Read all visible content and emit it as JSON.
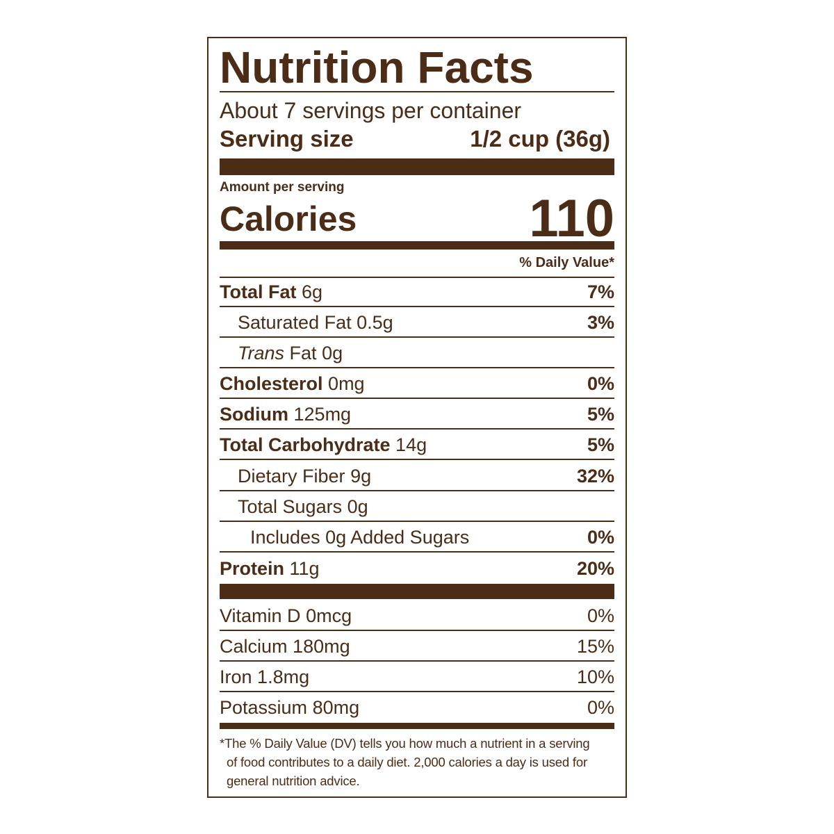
{
  "title": "Nutrition Facts",
  "servings": "About 7 servings per container",
  "serving_size": {
    "label": "Serving size",
    "value": "1/2 cup (36g)"
  },
  "amount_per_serving": "Amount per serving",
  "calories": {
    "label": "Calories",
    "value": "110"
  },
  "daily_value_header": "% Daily Value*",
  "nutrients": [
    {
      "name": "Total Fat",
      "amount": "6g",
      "dv": "7%"
    },
    {
      "name": "Saturated Fat",
      "amount": "0.5g",
      "dv": "3%"
    },
    {
      "name_italic": "Trans",
      "name": "Fat",
      "amount": "0g"
    },
    {
      "name": "Cholesterol",
      "amount": "0mg",
      "dv": "0%"
    },
    {
      "name": "Sodium",
      "amount": "125mg",
      "dv": "5%"
    },
    {
      "name": "Total Carbohydrate",
      "amount": "14g",
      "dv": "5%"
    },
    {
      "name": "Dietary Fiber",
      "amount": "9g",
      "dv": "32%"
    },
    {
      "name": "Total Sugars",
      "amount": "0g"
    },
    {
      "name": "Includes 0g Added Sugars",
      "dv": "0%"
    },
    {
      "name": "Protein",
      "amount": "11g",
      "dv": "20%"
    }
  ],
  "vitamins": [
    {
      "name": "Vitamin D",
      "amount": "0mcg",
      "dv": "0%"
    },
    {
      "name": "Calcium",
      "amount": "180mg",
      "dv": "15%"
    },
    {
      "name": "Iron",
      "amount": "1.8mg",
      "dv": "10%"
    },
    {
      "name": "Potassium",
      "amount": "80mg",
      "dv": "0%"
    }
  ],
  "footnote": [
    "*The % Daily Value (DV) tells you how much a nutrient in a serving",
    "of food contributes to a daily diet. 2,000 calories a day is used for",
    "general nutrition advice."
  ]
}
